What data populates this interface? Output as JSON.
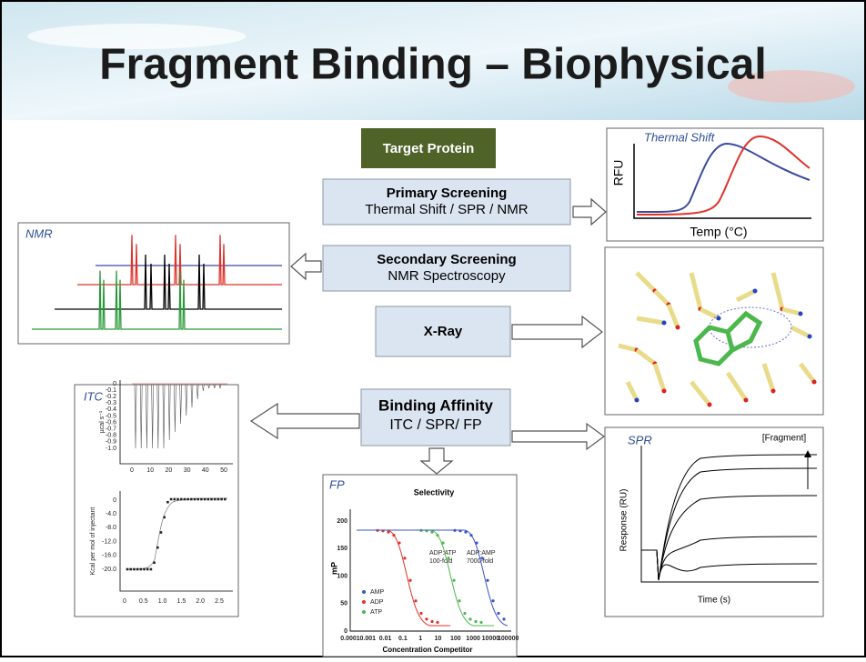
{
  "title": "Fragment Binding – Biophysical",
  "boxes": {
    "target": "Target Protein",
    "primary": {
      "heading": "Primary Screening",
      "detail": "Thermal Shift / SPR / NMR"
    },
    "secondary": {
      "heading": "Secondary Screening",
      "detail": "NMR Spectroscopy"
    },
    "xray": "X-Ray",
    "affinity": {
      "heading": "Binding Affinity",
      "detail": "ITC / SPR/ FP"
    }
  },
  "panels": {
    "thermal": {
      "label": "Thermal Shift",
      "ylabel": "RFU",
      "xlabel": "Temp (°C)"
    },
    "nmr": {
      "label": "NMR"
    },
    "itc": {
      "label": "ITC",
      "top": {
        "ylabel": "µcal s⁻¹",
        "yticks": [
          "0",
          "-0.1",
          "-0.2",
          "-0.3",
          "-0.4",
          "-0.5",
          "-0.6",
          "-0.7",
          "-0.8",
          "-0.9",
          "-1.0"
        ],
        "xticks": [
          "0",
          "10",
          "20",
          "30",
          "40",
          "50"
        ]
      },
      "bottom": {
        "ylabel": "Kcal per mol of injectant",
        "yticks": [
          "0",
          "-4.0",
          "-8.0",
          "-12.0",
          "-16.0",
          "-20.0"
        ],
        "xticks": [
          "0",
          "0.5",
          "1.0",
          "1.5",
          "2.0",
          "2.5"
        ]
      }
    },
    "fp": {
      "label": "FP",
      "title": "Selectivity",
      "ylabel": "mP",
      "xlabel": "Concentration Competitor",
      "yticks": [
        "200",
        "150",
        "100",
        "50",
        "0"
      ],
      "xticks": [
        "0.0001",
        "0.001",
        "0.01",
        "0.1",
        "1",
        "10",
        "100",
        "1000",
        "10000",
        "100000"
      ],
      "notes": [
        "ADP:ATP",
        "100-fold",
        "ADP:AMP",
        "7000-fold"
      ],
      "legend": [
        "AMP",
        "ADP",
        "ATP"
      ]
    },
    "spr": {
      "label": "SPR",
      "note": "[Fragment]",
      "ylabel": "Response (RU)",
      "xlabel": "Time (s)"
    }
  }
}
